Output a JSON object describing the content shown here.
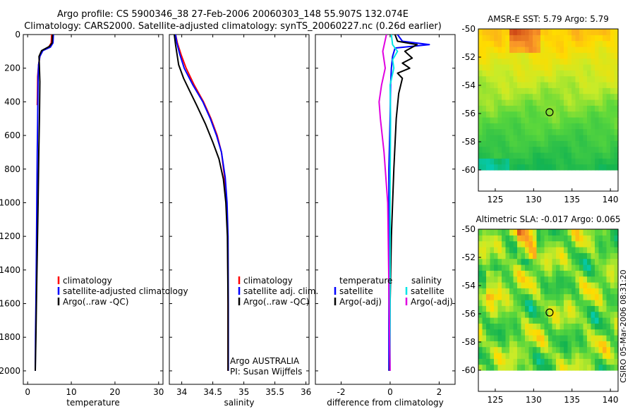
{
  "header": {
    "line1": "Argo profile: CS 5900346_38 27-Feb-2006 20060303_148 55.907S 132.074E",
    "line2": "Climatology: CARS2000. Satellite-adjusted climatology: synTS_20060227.nc (0.26d earlier)"
  },
  "timestamp": "CSIRO 05-Mar-2006 08:31:20",
  "colors": {
    "red": "#ff0000",
    "blue": "#0000ff",
    "black": "#000000",
    "cyan": "#00e5e5",
    "magenta": "#e000e0"
  },
  "chart_data": [
    {
      "type": "line",
      "xlabel": "temperature",
      "ylabel": "",
      "xlim": [
        -1,
        31
      ],
      "ylim": [
        2080,
        0
      ],
      "xticks": [
        0,
        10,
        20,
        30
      ],
      "xtick_labels": [
        "0",
        "10",
        "20",
        "30"
      ],
      "yticks": [
        0,
        200,
        400,
        600,
        800,
        1000,
        1200,
        1400,
        1600,
        1800,
        2000
      ],
      "ytick_labels": [
        "0",
        "200",
        "400",
        "600",
        "800",
        "1000",
        "1200",
        "1400",
        "1600",
        "1800",
        "2000"
      ],
      "legend": [
        "climatology",
        "satellite-adjusted climatology",
        "Argo(..raw -QC)"
      ],
      "legend_colors": [
        "red",
        "blue",
        "black"
      ],
      "series": [
        {
          "name": "climatology",
          "color": "red",
          "x": [
            5.5,
            5.4,
            4.8,
            3.4,
            2.8,
            2.5,
            2.3,
            2.25,
            2.2
          ],
          "y": [
            0,
            50,
            75,
            95,
            130,
            180,
            250,
            350,
            420
          ]
        },
        {
          "name": "satellite-adjusted climatology",
          "color": "blue",
          "x": [
            5.9,
            5.8,
            5.2,
            3.5,
            2.8,
            2.5,
            2.4,
            2.35,
            2.3,
            2.2,
            2.1,
            2.0,
            1.9,
            1.8,
            1.75
          ],
          "y": [
            0,
            50,
            75,
            95,
            130,
            180,
            250,
            350,
            500,
            700,
            1000,
            1300,
            1600,
            1800,
            2000
          ]
        },
        {
          "name": "Argo(..raw -QC)",
          "color": "black",
          "x": [
            5.7,
            5.6,
            5.0,
            3.2,
            2.6,
            2.7,
            2.8,
            2.75,
            2.7,
            2.55,
            2.4,
            2.2,
            2.0,
            1.9,
            1.75
          ],
          "y": [
            0,
            50,
            70,
            95,
            130,
            200,
            280,
            400,
            500,
            700,
            1000,
            1300,
            1600,
            1800,
            2000
          ]
        }
      ]
    },
    {
      "type": "line",
      "xlabel": "salinity",
      "ylabel": "",
      "xlim": [
        33.8,
        36.05
      ],
      "ylim": [
        2080,
        0
      ],
      "xticks": [
        34,
        34.5,
        35,
        35.5,
        36
      ],
      "xtick_labels": [
        "34",
        "34.5",
        "35",
        "35.5",
        "36"
      ],
      "legend": [
        "climatology",
        "satellite adj. clim.",
        "Argo(..raw -QC)"
      ],
      "legend_colors": [
        "red",
        "blue",
        "black"
      ],
      "annotation": [
        "Argo AUSTRALIA",
        "PI: Susan Wijffels"
      ],
      "series": [
        {
          "name": "climatology",
          "color": "red",
          "x": [
            33.9,
            33.93,
            33.99,
            34.07,
            34.2,
            34.35,
            34.47,
            34.57,
            34.64,
            34.69,
            34.72,
            34.74,
            34.745,
            34.745
          ],
          "y": [
            0,
            50,
            120,
            200,
            300,
            400,
            500,
            600,
            700,
            850,
            1000,
            1200,
            1600,
            2000
          ]
        },
        {
          "name": "satellite adj. clim.",
          "color": "blue",
          "x": [
            33.9,
            33.92,
            33.97,
            34.04,
            34.18,
            34.34,
            34.46,
            34.56,
            34.64,
            34.7,
            34.73,
            34.745,
            34.75,
            34.75
          ],
          "y": [
            0,
            50,
            120,
            200,
            300,
            400,
            500,
            600,
            700,
            850,
            1000,
            1200,
            1600,
            2000
          ]
        },
        {
          "name": "Argo(..raw -QC)",
          "color": "black",
          "x": [
            33.88,
            33.9,
            33.95,
            34.03,
            34.12,
            34.24,
            34.38,
            34.5,
            34.6,
            34.67,
            34.71,
            34.735,
            34.745,
            34.745
          ],
          "y": [
            0,
            60,
            180,
            260,
            330,
            420,
            530,
            640,
            740,
            860,
            1000,
            1200,
            1600,
            2000
          ]
        }
      ]
    },
    {
      "type": "line",
      "xlabel": "difference from climatology",
      "ylabel": "",
      "xlim": [
        -3.05,
        2.65
      ],
      "ylim": [
        2080,
        0
      ],
      "xticks": [
        -2,
        0,
        2
      ],
      "xtick_labels": [
        "-2",
        "0",
        "2"
      ],
      "legend_left_title": "temperature",
      "legend_right_title": "salinity",
      "legend_left": [
        "satellite",
        "Argo(-adj)"
      ],
      "legend_left_colors": [
        "blue",
        "black"
      ],
      "legend_right": [
        "satellite",
        "Argo(-adj)"
      ],
      "legend_right_colors": [
        "cyan",
        "magenta"
      ],
      "series": [
        {
          "name": "temperature satellite",
          "color": "blue",
          "x": [
            0.3,
            0.5,
            1.6,
            0.2,
            0.1,
            0.05,
            0.02,
            0.0,
            -0.05,
            -0.05,
            -0.05,
            -0.05
          ],
          "y": [
            0,
            40,
            60,
            80,
            130,
            200,
            300,
            500,
            800,
            1200,
            1600,
            2000
          ]
        },
        {
          "name": "temperature Argo(-adj)",
          "color": "black",
          "x": [
            0.2,
            0.3,
            1.1,
            0.6,
            0.9,
            0.5,
            0.8,
            0.3,
            0.5,
            0.35,
            0.25,
            0.15,
            0.05,
            0.0,
            -0.02
          ],
          "y": [
            0,
            40,
            60,
            100,
            140,
            170,
            200,
            230,
            260,
            350,
            500,
            800,
            1200,
            1600,
            2000
          ]
        },
        {
          "name": "salinity satellite",
          "color": "cyan",
          "x": [
            0.05,
            0.1,
            0.3,
            0.1,
            0.15,
            0.0,
            0.02,
            0.0,
            0.0,
            0.0
          ],
          "y": [
            0,
            60,
            100,
            150,
            200,
            300,
            500,
            900,
            1400,
            2000
          ]
        },
        {
          "name": "salinity Argo(-adj)",
          "color": "magenta",
          "x": [
            -0.15,
            -0.3,
            -0.2,
            -0.35,
            -0.45,
            -0.4,
            -0.25,
            -0.1,
            0.0
          ],
          "y": [
            0,
            100,
            200,
            300,
            400,
            500,
            700,
            1000,
            2000
          ]
        }
      ]
    },
    {
      "type": "heatmap",
      "title": "AMSR-E SST: 5.79 Argo: 5.79",
      "xlim": [
        122.8,
        141
      ],
      "ylim": [
        -61.5,
        -50
      ],
      "xticks": [
        125,
        130,
        135,
        140
      ],
      "xtick_labels": [
        "125",
        "130",
        "135",
        "140"
      ],
      "yticks": [
        -50,
        -52,
        -54,
        -56,
        -58,
        -60
      ],
      "ytick_labels": [
        "-50",
        "-52",
        "-54",
        "-56",
        "-58",
        "-60"
      ],
      "data_ylim": [
        -60,
        -50
      ],
      "marker": [
        132.074,
        -55.907
      ]
    },
    {
      "type": "heatmap",
      "title": "Altimetric SLA: -0.017 Argo: 0.065",
      "xlim": [
        122.8,
        141
      ],
      "ylim": [
        -61.5,
        -50
      ],
      "xticks": [
        125,
        130,
        135,
        140
      ],
      "xtick_labels": [
        "125",
        "130",
        "135",
        "140"
      ],
      "yticks": [
        -50,
        -52,
        -54,
        -56,
        -58,
        -60
      ],
      "ytick_labels": [
        "-50",
        "-52",
        "-54",
        "-56",
        "-58",
        "-60"
      ],
      "data_ylim": [
        -60,
        -50
      ],
      "marker": [
        132.074,
        -55.907
      ]
    }
  ]
}
